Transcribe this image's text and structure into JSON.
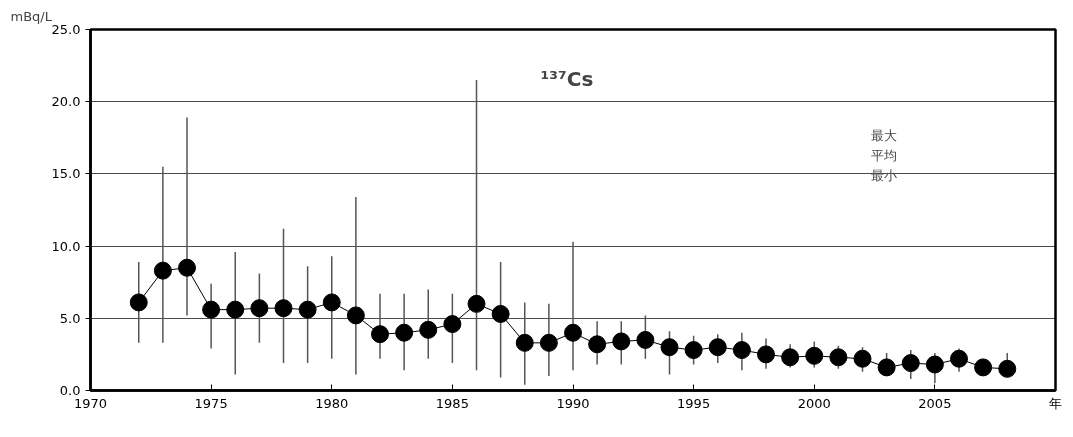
{
  "chart_data": {
    "type": "line",
    "title": "¹³⁷Cs",
    "ylabel": "mBq/L",
    "x": [
      1972,
      1973,
      1974,
      1975,
      1976,
      1977,
      1978,
      1979,
      1980,
      1981,
      1982,
      1983,
      1984,
      1985,
      1986,
      1987,
      1988,
      1989,
      1990,
      1991,
      1992,
      1993,
      1994,
      1995,
      1996,
      1997,
      1998,
      1999,
      2000,
      2001,
      2002,
      2003,
      2004,
      2005,
      2006,
      2007,
      2008
    ],
    "values": [
      6.1,
      8.3,
      8.5,
      5.6,
      5.6,
      5.7,
      5.7,
      5.6,
      6.1,
      5.2,
      3.9,
      4.0,
      4.2,
      4.6,
      6.0,
      5.3,
      3.3,
      3.3,
      4.0,
      3.2,
      3.4,
      3.5,
      3.0,
      2.8,
      3.0,
      2.8,
      2.5,
      2.3,
      2.4,
      2.3,
      2.2,
      1.6,
      1.9,
      1.8,
      2.2,
      1.6,
      1.5
    ],
    "errors": [
      [
        3.3,
        8.9
      ],
      [
        3.3,
        15.5
      ],
      [
        5.2,
        18.9
      ],
      [
        2.9,
        7.4
      ],
      [
        1.1,
        9.6
      ],
      [
        3.3,
        8.1
      ],
      [
        1.9,
        11.2
      ],
      [
        1.9,
        8.6
      ],
      [
        2.2,
        9.3
      ],
      [
        1.1,
        13.4
      ],
      [
        2.2,
        6.7
      ],
      [
        1.4,
        6.7
      ],
      [
        2.2,
        7.0
      ],
      [
        1.9,
        6.7
      ],
      [
        1.4,
        21.5
      ],
      [
        0.9,
        8.9
      ],
      [
        0.4,
        6.1
      ],
      [
        1.0,
        6.0
      ],
      [
        1.4,
        10.3
      ],
      [
        1.8,
        4.8
      ],
      [
        1.8,
        4.8
      ],
      [
        2.2,
        5.2
      ],
      [
        1.1,
        4.1
      ],
      [
        1.8,
        3.8
      ],
      [
        1.9,
        3.9
      ],
      [
        1.4,
        4.0
      ],
      [
        1.5,
        3.6
      ],
      [
        1.6,
        3.2
      ],
      [
        1.6,
        3.4
      ],
      [
        1.5,
        3.1
      ],
      [
        1.3,
        3.0
      ],
      [
        1.0,
        2.6
      ],
      [
        0.8,
        2.8
      ],
      [
        0.5,
        2.6
      ],
      [
        1.3,
        2.9
      ],
      null,
      [
        1.0,
        2.6
      ]
    ],
    "color": "#000000",
    "xlim": [
      1970,
      2010
    ],
    "xticks": [
      1970,
      1975,
      1980,
      1985,
      1990,
      1995,
      2000,
      2005,
      {
        "value": 2010,
        "label": "年"
      }
    ],
    "ylim": [
      0,
      25
    ],
    "yticks": [
      {
        "value": 0,
        "label": "0.0"
      },
      {
        "value": 5,
        "label": "5.0"
      },
      {
        "value": 10,
        "label": "10.0"
      },
      {
        "value": 15,
        "label": "15.0"
      },
      {
        "value": 20,
        "label": "20.0"
      },
      {
        "value": 25,
        "label": "25.0"
      }
    ],
    "grid": "y",
    "marker": "circle",
    "line_style": "solid",
    "annotations": [
      "最大",
      "平均",
      "最小"
    ]
  }
}
